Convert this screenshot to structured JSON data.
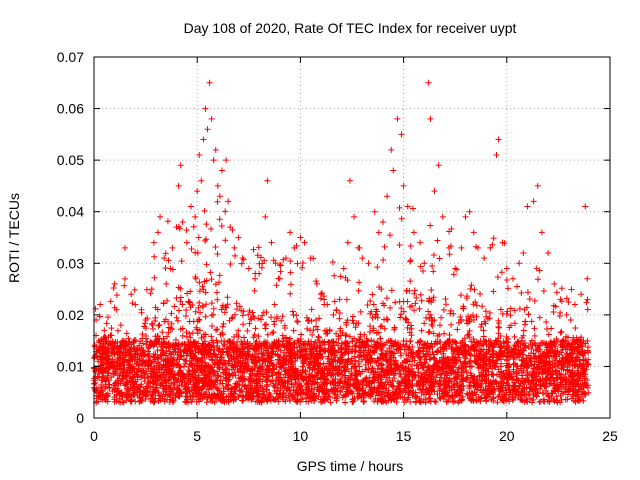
{
  "chart_data": {
    "type": "scatter",
    "title": "Day 108 of 2020, Rate Of TEC Index for receiver uypt",
    "xlabel": "GPS time / hours",
    "ylabel": "ROTI / TECUs",
    "xlim": [
      0,
      25
    ],
    "ylim": [
      0,
      0.07
    ],
    "x_ticks": [
      0,
      5,
      10,
      15,
      20,
      25
    ],
    "x_tick_labels": [
      "0",
      "5",
      "10",
      "15",
      "20",
      "25"
    ],
    "y_ticks": [
      0,
      0.01,
      0.02,
      0.03,
      0.04,
      0.05,
      0.06,
      0.07
    ],
    "y_tick_labels": [
      "0",
      "0.01",
      "0.02",
      "0.03",
      "0.04",
      "0.05",
      "0.06",
      "0.07"
    ],
    "grid": true,
    "legend": "none",
    "marker": "plus",
    "color": "#ff0000",
    "series": [
      {
        "points": [
          [
            0.1,
            0.019
          ],
          [
            0.2,
            0.011
          ],
          [
            0.3,
            0.022
          ],
          [
            0.5,
            0.017
          ],
          [
            0.6,
            0.012
          ],
          [
            0.8,
            0.016
          ],
          [
            1.0,
            0.026
          ],
          [
            1.1,
            0.021
          ],
          [
            1.3,
            0.018
          ],
          [
            1.5,
            0.014
          ],
          [
            1.5,
            0.033
          ],
          [
            1.8,
            0.024
          ],
          [
            2.0,
            0.022
          ],
          [
            2.3,
            0.021
          ],
          [
            2.5,
            0.019
          ],
          [
            2.8,
            0.025
          ],
          [
            2.9,
            0.034
          ],
          [
            3.1,
            0.036
          ],
          [
            3.2,
            0.039
          ],
          [
            3.4,
            0.031
          ],
          [
            3.5,
            0.026
          ],
          [
            3.7,
            0.029
          ],
          [
            3.8,
            0.033
          ],
          [
            4.0,
            0.037
          ],
          [
            4.1,
            0.045
          ],
          [
            4.2,
            0.049
          ],
          [
            4.3,
            0.038
          ],
          [
            4.5,
            0.034
          ],
          [
            4.7,
            0.041
          ],
          [
            4.9,
            0.039
          ],
          [
            5.0,
            0.044
          ],
          [
            5.1,
            0.051
          ],
          [
            5.2,
            0.046
          ],
          [
            5.3,
            0.054
          ],
          [
            5.4,
            0.06
          ],
          [
            5.5,
            0.056
          ],
          [
            5.6,
            0.065
          ],
          [
            5.7,
            0.058
          ],
          [
            5.8,
            0.05
          ],
          [
            5.9,
            0.052
          ],
          [
            6.0,
            0.045
          ],
          [
            6.1,
            0.043
          ],
          [
            6.2,
            0.048
          ],
          [
            6.4,
            0.05
          ],
          [
            6.5,
            0.042
          ],
          [
            6.6,
            0.037
          ],
          [
            6.8,
            0.033
          ],
          [
            7.0,
            0.035
          ],
          [
            7.2,
            0.031
          ],
          [
            7.5,
            0.029
          ],
          [
            7.8,
            0.027
          ],
          [
            8.0,
            0.028
          ],
          [
            8.3,
            0.039
          ],
          [
            8.4,
            0.046
          ],
          [
            8.6,
            0.034
          ],
          [
            8.8,
            0.03
          ],
          [
            9.0,
            0.027
          ],
          [
            9.3,
            0.031
          ],
          [
            9.5,
            0.036
          ],
          [
            9.7,
            0.033
          ],
          [
            10.0,
            0.035
          ],
          [
            10.2,
            0.034
          ],
          [
            10.5,
            0.031
          ],
          [
            10.8,
            0.026
          ],
          [
            11.0,
            0.024
          ],
          [
            11.3,
            0.022
          ],
          [
            11.6,
            0.02
          ],
          [
            11.9,
            0.023
          ],
          [
            12.1,
            0.029
          ],
          [
            12.3,
            0.034
          ],
          [
            12.4,
            0.046
          ],
          [
            12.6,
            0.039
          ],
          [
            12.8,
            0.033
          ],
          [
            13.0,
            0.031
          ],
          [
            13.3,
            0.03
          ],
          [
            13.6,
            0.04
          ],
          [
            13.8,
            0.036
          ],
          [
            14.0,
            0.038
          ],
          [
            14.2,
            0.043
          ],
          [
            14.4,
            0.052
          ],
          [
            14.5,
            0.048
          ],
          [
            14.7,
            0.058
          ],
          [
            14.9,
            0.055
          ],
          [
            15.0,
            0.045
          ],
          [
            15.2,
            0.041
          ],
          [
            15.5,
            0.036
          ],
          [
            15.8,
            0.034
          ],
          [
            16.0,
            0.03
          ],
          [
            16.2,
            0.065
          ],
          [
            16.3,
            0.058
          ],
          [
            16.5,
            0.044
          ],
          [
            16.7,
            0.049
          ],
          [
            16.9,
            0.039
          ],
          [
            17.2,
            0.033
          ],
          [
            17.5,
            0.029
          ],
          [
            17.8,
            0.033
          ],
          [
            18.0,
            0.039
          ],
          [
            18.2,
            0.04
          ],
          [
            18.4,
            0.036
          ],
          [
            18.6,
            0.033
          ],
          [
            18.9,
            0.031
          ],
          [
            19.2,
            0.033
          ],
          [
            19.5,
            0.051
          ],
          [
            19.6,
            0.054
          ],
          [
            19.8,
            0.034
          ],
          [
            20.0,
            0.029
          ],
          [
            20.3,
            0.027
          ],
          [
            20.6,
            0.03
          ],
          [
            20.8,
            0.032
          ],
          [
            21.0,
            0.041
          ],
          [
            21.3,
            0.042
          ],
          [
            21.5,
            0.045
          ],
          [
            21.7,
            0.036
          ],
          [
            22.0,
            0.032
          ],
          [
            22.3,
            0.026
          ],
          [
            22.6,
            0.023
          ],
          [
            22.9,
            0.02
          ],
          [
            23.1,
            0.019
          ],
          [
            23.3,
            0.022
          ],
          [
            23.6,
            0.024
          ],
          [
            23.8,
            0.041
          ],
          [
            23.9,
            0.027
          ]
        ]
      }
    ]
  }
}
